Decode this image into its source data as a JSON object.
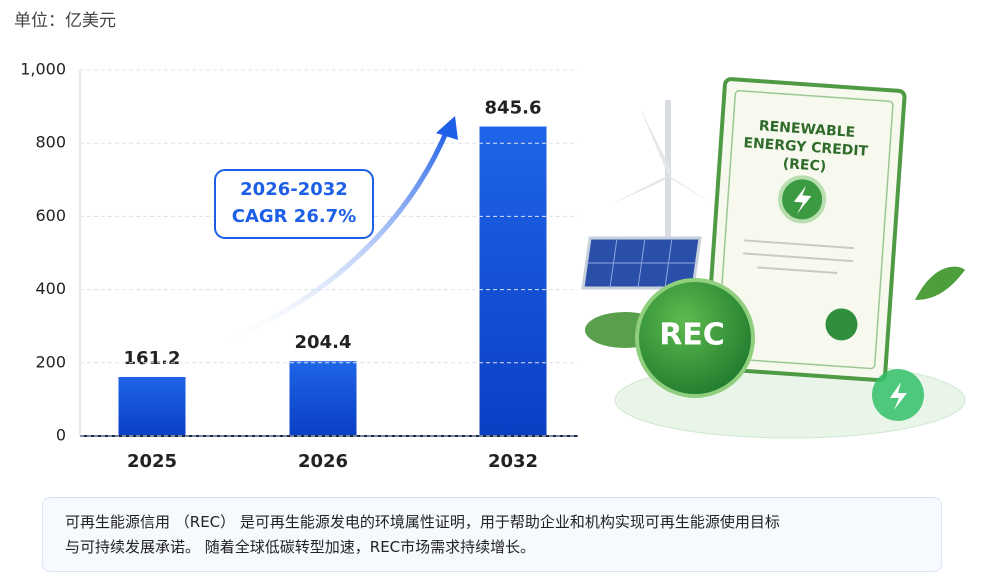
{
  "chart_data": {
    "type": "bar",
    "unit": "单位：亿美元",
    "categories": [
      "2025",
      "2026",
      "2032"
    ],
    "values": [
      161.2,
      204.4,
      845.6
    ],
    "color": "#1a5ee0",
    "ylim": [
      0,
      1000
    ],
    "yticks": [
      0,
      200,
      400,
      600,
      {
        "value": 800,
        "label": "800"
      },
      {
        "value": 1000,
        "label": "1,000"
      }
    ],
    "grid": true,
    "annotation": [
      "2026-2032",
      "CAGR 26.7%"
    ]
  },
  "illustration": {
    "certificate_title": [
      "RENEWABLE",
      "ENERGY CREDIT",
      "(REC)"
    ],
    "badge": "REC"
  },
  "description": [
    "可再生能源信用 （REC） 是可再生能源发电的环境属性证明，用于帮助企业和机构实现可再生能源使用目标",
    "与可持续发展承诺。 随着全球低碳转型加速，REC市场需求持续增长。"
  ]
}
